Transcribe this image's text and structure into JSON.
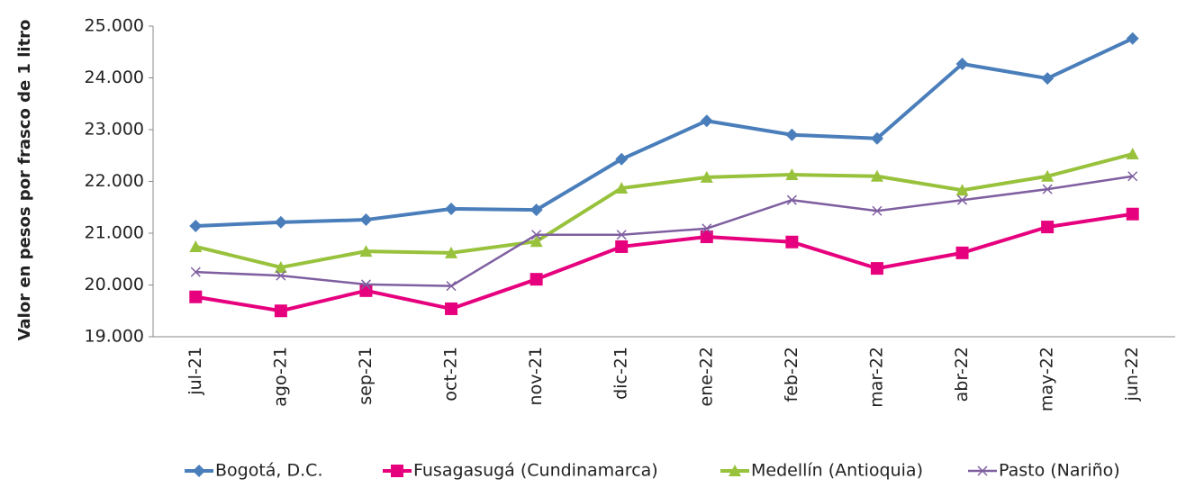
{
  "chart_data": {
    "type": "line",
    "y_label": "Valor en pesos por frasco de 1 litro",
    "categories": [
      "jul-21",
      "ago-21",
      "sep-21",
      "oct-21",
      "nov-21",
      "dic-21",
      "ene-22",
      "feb-22",
      "mar-22",
      "abr-22",
      "may-22",
      "jun-22"
    ],
    "series": [
      {
        "name": "Bogotá, D.C.",
        "color": "#4a7ebb",
        "marker": "diamond",
        "values": [
          21140,
          21210,
          21260,
          21470,
          21450,
          22430,
          23170,
          22900,
          22830,
          24270,
          23990,
          24760
        ]
      },
      {
        "name": "Fusagasugá (Cundinamarca)",
        "color": "#e6007e",
        "marker": "square",
        "values": [
          19770,
          19500,
          19890,
          19540,
          20110,
          20740,
          20930,
          20830,
          20320,
          20620,
          21120,
          21370
        ]
      },
      {
        "name": "Medellín (Antioquia)",
        "color": "#98c23c",
        "marker": "triangle",
        "values": [
          20740,
          20340,
          20650,
          20620,
          20840,
          21870,
          22080,
          22130,
          22100,
          21830,
          22100,
          22530
        ]
      },
      {
        "name": "Pasto (Nariño)",
        "color": "#7f5fa0",
        "marker": "x",
        "values": [
          20250,
          20180,
          20010,
          19980,
          20970,
          20970,
          21090,
          21640,
          21430,
          21640,
          21850,
          22100
        ]
      }
    ],
    "ylim": [
      19000,
      25000
    ],
    "yticks": [
      {
        "value": 19000,
        "label": "19.000"
      },
      {
        "value": 20000,
        "label": "20.000"
      },
      {
        "value": 21000,
        "label": "21.000"
      },
      {
        "value": 22000,
        "label": "22.000"
      },
      {
        "value": 23000,
        "label": "23.000"
      },
      {
        "value": 24000,
        "label": "24.000"
      },
      {
        "value": 25000,
        "label": "25.000"
      }
    ],
    "legend": "bottom"
  }
}
